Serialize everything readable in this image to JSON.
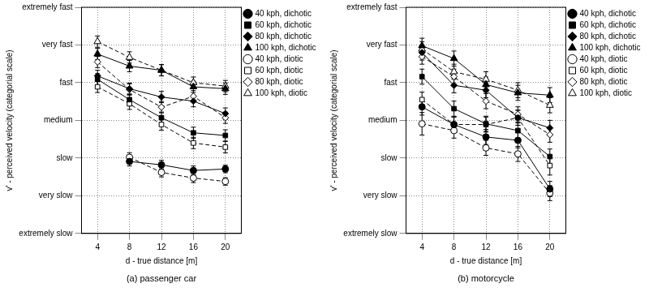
{
  "chart_data": [
    {
      "type": "line",
      "title": "(a) passenger car",
      "xlabel": "d - true distance [m]",
      "ylabel": "v' - perceived velocity (categorial scale)",
      "x": [
        4,
        8,
        12,
        16,
        20
      ],
      "xlim": [
        2,
        22
      ],
      "xticks": [
        4,
        8,
        12,
        16,
        20
      ],
      "ylim": [
        1,
        7
      ],
      "yticks": [
        {
          "value": 1,
          "label": "extremely slow"
        },
        {
          "value": 2,
          "label": "very slow"
        },
        {
          "value": 3,
          "label": "slow"
        },
        {
          "value": 4,
          "label": "medium"
        },
        {
          "value": 5,
          "label": "fast"
        },
        {
          "value": 6,
          "label": "very fast"
        },
        {
          "value": 7,
          "label": "extremely fast"
        }
      ],
      "grid": true,
      "legend": "right",
      "series": [
        {
          "name": "40 kph, dichotic",
          "color": "#000000",
          "marker": "circle",
          "line_style": "solid",
          "values": [
            null,
            2.91,
            2.82,
            2.67,
            2.71
          ],
          "errors": [
            null,
            0.12,
            0.12,
            0.12,
            0.1
          ]
        },
        {
          "name": "60 kph, dichotic",
          "color": "#000000",
          "marker": "square",
          "line_style": "solid",
          "values": [
            5.09,
            4.55,
            4.07,
            3.67,
            3.6
          ],
          "errors": [
            0.15,
            0.15,
            0.15,
            0.15,
            0.15
          ]
        },
        {
          "name": "80 kph, dichotic",
          "color": "#000000",
          "marker": "diamond",
          "line_style": "solid",
          "values": [
            5.18,
            4.84,
            4.62,
            4.51,
            4.18
          ],
          "errors": [
            0.15,
            0.15,
            0.15,
            0.15,
            0.15
          ]
        },
        {
          "name": "100 kph, dichotic",
          "color": "#000000",
          "marker": "triangle",
          "line_style": "solid",
          "values": [
            5.76,
            5.44,
            5.33,
            4.89,
            4.84
          ],
          "errors": [
            0.15,
            0.15,
            0.15,
            0.15,
            0.15
          ]
        },
        {
          "name": "40 kph, diotic",
          "color": "#000000",
          "marker": "open-circle",
          "line_style": "dashed",
          "values": [
            null,
            3.02,
            2.62,
            2.47,
            2.38
          ],
          "errors": [
            null,
            0.12,
            0.12,
            0.12,
            0.1
          ]
        },
        {
          "name": "60 kph, diotic",
          "color": "#000000",
          "marker": "open-square",
          "line_style": "dashed",
          "values": [
            4.89,
            4.44,
            3.89,
            3.4,
            3.29
          ],
          "errors": [
            0.15,
            0.15,
            0.15,
            0.15,
            0.15
          ]
        },
        {
          "name": "80 kph, diotic",
          "color": "#000000",
          "marker": "open-diamond",
          "line_style": "dashed",
          "values": [
            5.55,
            4.82,
            4.35,
            4.64,
            4.07
          ],
          "errors": [
            0.15,
            0.15,
            0.15,
            0.15,
            0.15
          ]
        },
        {
          "name": "100 kph, diotic",
          "color": "#000000",
          "marker": "open-triangle",
          "line_style": "dashed",
          "values": [
            6.09,
            5.67,
            5.33,
            5.0,
            4.91
          ],
          "errors": [
            0.15,
            0.15,
            0.15,
            0.15,
            0.15
          ]
        }
      ]
    },
    {
      "type": "line",
      "title": "(b) motorcycle",
      "xlabel": "d - true distance [m]",
      "ylabel": "v' - perceived velocity (categorial scale)",
      "x": [
        4,
        8,
        12,
        16,
        20
      ],
      "xlim": [
        2,
        22
      ],
      "xticks": [
        4,
        8,
        12,
        16,
        20
      ],
      "ylim": [
        1,
        7
      ],
      "yticks": [
        {
          "value": 1,
          "label": "extremely slow"
        },
        {
          "value": 2,
          "label": "very slow"
        },
        {
          "value": 3,
          "label": "slow"
        },
        {
          "value": 4,
          "label": "medium"
        },
        {
          "value": 5,
          "label": "fast"
        },
        {
          "value": 6,
          "label": "very fast"
        },
        {
          "value": 7,
          "label": "extremely fast"
        }
      ],
      "grid": true,
      "legend": "right",
      "series": [
        {
          "name": "40 kph, dichotic",
          "color": "#000000",
          "marker": "circle",
          "line_style": "solid",
          "values": [
            4.36,
            3.89,
            3.56,
            3.47,
            2.18
          ],
          "errors": [
            0.22,
            0.2,
            0.2,
            0.2,
            0.2
          ]
        },
        {
          "name": "60 kph, dichotic",
          "color": "#000000",
          "marker": "square",
          "line_style": "solid",
          "values": [
            5.16,
            4.31,
            3.91,
            3.73,
            3.04
          ],
          "errors": [
            0.2,
            0.2,
            0.2,
            0.2,
            0.2
          ]
        },
        {
          "name": "80 kph, dichotic",
          "color": "#000000",
          "marker": "diamond",
          "line_style": "solid",
          "values": [
            5.8,
            4.93,
            4.8,
            4.07,
            3.8
          ],
          "errors": [
            0.2,
            0.2,
            0.2,
            0.2,
            0.2
          ]
        },
        {
          "name": "100 kph, dichotic",
          "color": "#000000",
          "marker": "triangle",
          "line_style": "solid",
          "values": [
            5.98,
            5.64,
            4.95,
            4.73,
            4.67
          ],
          "errors": [
            0.2,
            0.2,
            0.2,
            0.2,
            0.2
          ]
        },
        {
          "name": "40 kph, diotic",
          "color": "#000000",
          "marker": "open-circle",
          "line_style": "dashed",
          "values": [
            3.91,
            3.73,
            3.27,
            3.11,
            2.07
          ],
          "errors": [
            0.3,
            0.2,
            0.2,
            0.2,
            0.2
          ]
        },
        {
          "name": "60 kph, diotic",
          "color": "#000000",
          "marker": "open-square",
          "line_style": "dashed",
          "values": [
            4.55,
            3.89,
            3.89,
            4.07,
            2.8
          ],
          "errors": [
            0.2,
            0.2,
            0.2,
            0.2,
            0.25
          ]
        },
        {
          "name": "80 kph, diotic",
          "color": "#000000",
          "marker": "open-diamond",
          "line_style": "dashed",
          "values": [
            5.69,
            5.16,
            4.51,
            4.16,
            3.62
          ],
          "errors": [
            0.2,
            0.2,
            0.2,
            0.2,
            0.2
          ]
        },
        {
          "name": "100 kph, diotic",
          "color": "#000000",
          "marker": "open-triangle",
          "line_style": "dashed",
          "values": [
            5.89,
            5.29,
            5.09,
            4.8,
            4.4
          ],
          "errors": [
            0.2,
            0.2,
            0.2,
            0.2,
            0.2
          ]
        }
      ]
    }
  ]
}
